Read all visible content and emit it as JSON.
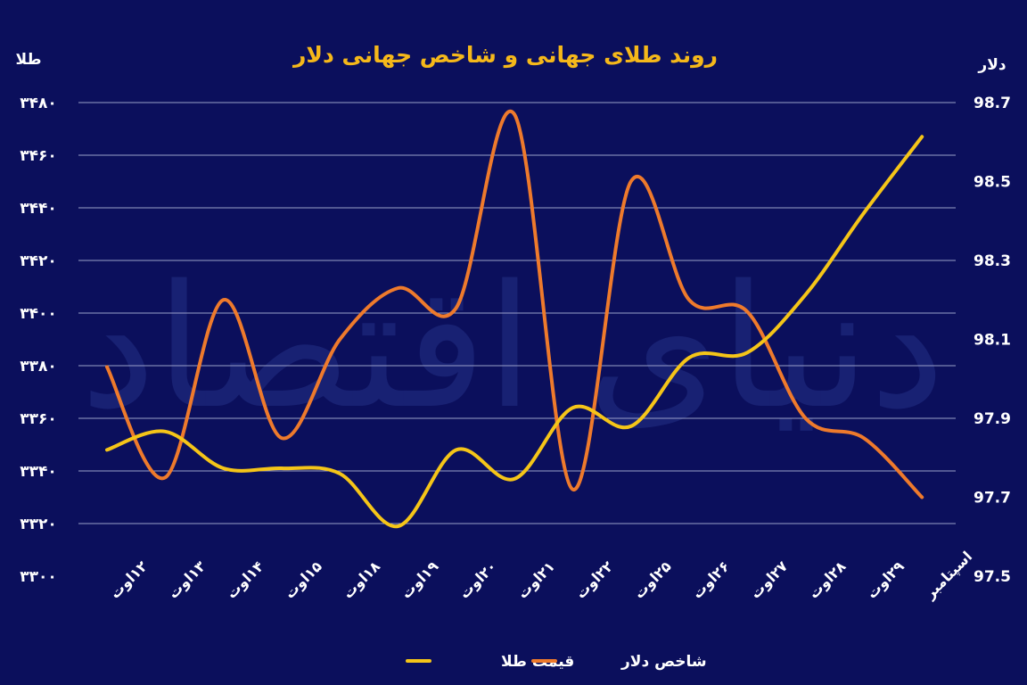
{
  "chart_data": {
    "type": "line",
    "title": "روند طلای جهانی و شاخص جهانی دلار",
    "left_axis": {
      "unit": "طلا",
      "ylim": [
        3300,
        3480
      ],
      "tick_labels": [
        "۳۳۰۰",
        "۳۳۲۰",
        "۳۳۴۰",
        "۳۳۶۰",
        "۳۳۸۰",
        "۳۴۰۰",
        "۳۴۲۰",
        "۳۴۴۰",
        "۳۴۶۰",
        "۳۴۸۰"
      ]
    },
    "right_axis": {
      "unit": "دلار",
      "ylim": [
        97.5,
        98.7
      ],
      "tick_labels": [
        "97.5",
        "97.7",
        "97.9",
        "98.1",
        "98.3",
        "98.5",
        "98.7"
      ]
    },
    "categories": [
      "۱۲اوت",
      "۱۳اوت",
      "۱۴اوت",
      "۱۵اوت",
      "۱۸اوت",
      "۱۹اوت",
      "۲۰اوت",
      "۲۱اوت",
      "۲۲اوت",
      "۲۵اوت",
      "۲۶اوت",
      "۲۷اوت",
      "۲۸اوت",
      "۲۹اوت",
      "اسپتامبر"
    ],
    "series": [
      {
        "name": "قیمت طلا",
        "axis": "left",
        "color": "#f5c518",
        "values": [
          3348,
          3355,
          3341,
          3341,
          3339,
          3319,
          3348,
          3337,
          3364,
          3357,
          3383,
          3385,
          3407,
          3438,
          3467
        ]
      },
      {
        "name": "شاخص دلار",
        "axis": "right",
        "color": "#ee7a2c",
        "values": [
          98.03,
          97.75,
          98.2,
          97.85,
          98.1,
          98.23,
          98.18,
          98.67,
          97.72,
          98.5,
          98.2,
          98.17,
          97.9,
          97.85,
          97.7
        ]
      }
    ],
    "grid": true,
    "legend": "bottom"
  },
  "watermark": "دنیای اقتصاد"
}
